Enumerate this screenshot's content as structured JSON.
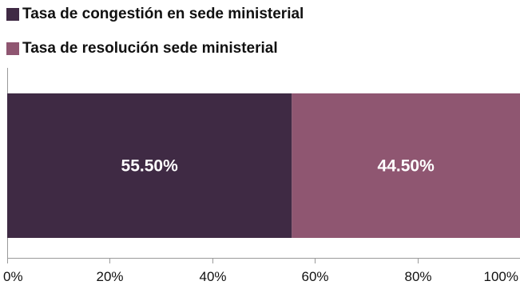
{
  "chart_data": {
    "type": "bar",
    "orientation": "horizontal",
    "stacked": true,
    "series": [
      {
        "name": "Tasa de congestión en sede ministerial",
        "values": [
          55.5
        ],
        "label": "55.50%",
        "color": "#3f2a44"
      },
      {
        "name": "Tasa de resolución sede ministerial",
        "values": [
          44.5
        ],
        "label": "44.50%",
        "color": "#8f5671"
      }
    ],
    "xlim": [
      0,
      100
    ],
    "x_ticks": [
      0,
      20,
      40,
      60,
      80,
      100
    ],
    "x_tick_labels": [
      "0%",
      "20%",
      "40%",
      "60%",
      "80%",
      "100%"
    ],
    "title": "",
    "xlabel": "",
    "ylabel": "",
    "grid": false,
    "legend_position": "top-left"
  }
}
